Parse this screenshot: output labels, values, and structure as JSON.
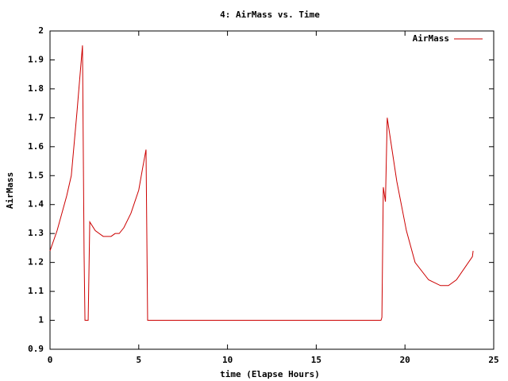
{
  "chart_data": {
    "type": "line",
    "title": "4: AirMass vs. Time",
    "x_label": "time (Elapse Hours)",
    "y_label": "AirMass",
    "x": [
      0,
      0.4,
      0.94,
      1.2,
      1.52,
      1.83,
      1.92,
      1.97,
      2.15,
      2.24,
      2.55,
      3.0,
      3.44,
      3.67,
      3.9,
      4.16,
      4.56,
      5.0,
      5.23,
      5.41,
      5.5,
      18.65,
      18.7,
      18.78,
      18.9,
      19.0,
      19.54,
      20.08,
      20.57,
      21.33,
      22.0,
      22.45,
      22.9,
      23.8,
      23.84
    ],
    "series": [
      {
        "name": "AirMass",
        "color": "#cc0000",
        "values": [
          1.24,
          1.31,
          1.43,
          1.5,
          1.72,
          1.95,
          1.23,
          1.0,
          1.0,
          1.34,
          1.31,
          1.29,
          1.29,
          1.3,
          1.3,
          1.32,
          1.37,
          1.45,
          1.53,
          1.59,
          1.0,
          1.0,
          1.01,
          1.46,
          1.41,
          1.7,
          1.48,
          1.31,
          1.2,
          1.14,
          1.12,
          1.12,
          1.14,
          1.22,
          1.24
        ]
      }
    ],
    "xlim": [
      0,
      25
    ],
    "xticks": [
      0,
      5,
      10,
      15,
      20,
      25
    ],
    "ylim": [
      0.9,
      2
    ],
    "yticks": [
      0.9,
      1,
      1.1,
      1.2,
      1.3,
      1.4,
      1.5,
      1.6,
      1.7,
      1.8,
      1.9,
      2
    ],
    "grid": false,
    "legend": "top-right"
  }
}
